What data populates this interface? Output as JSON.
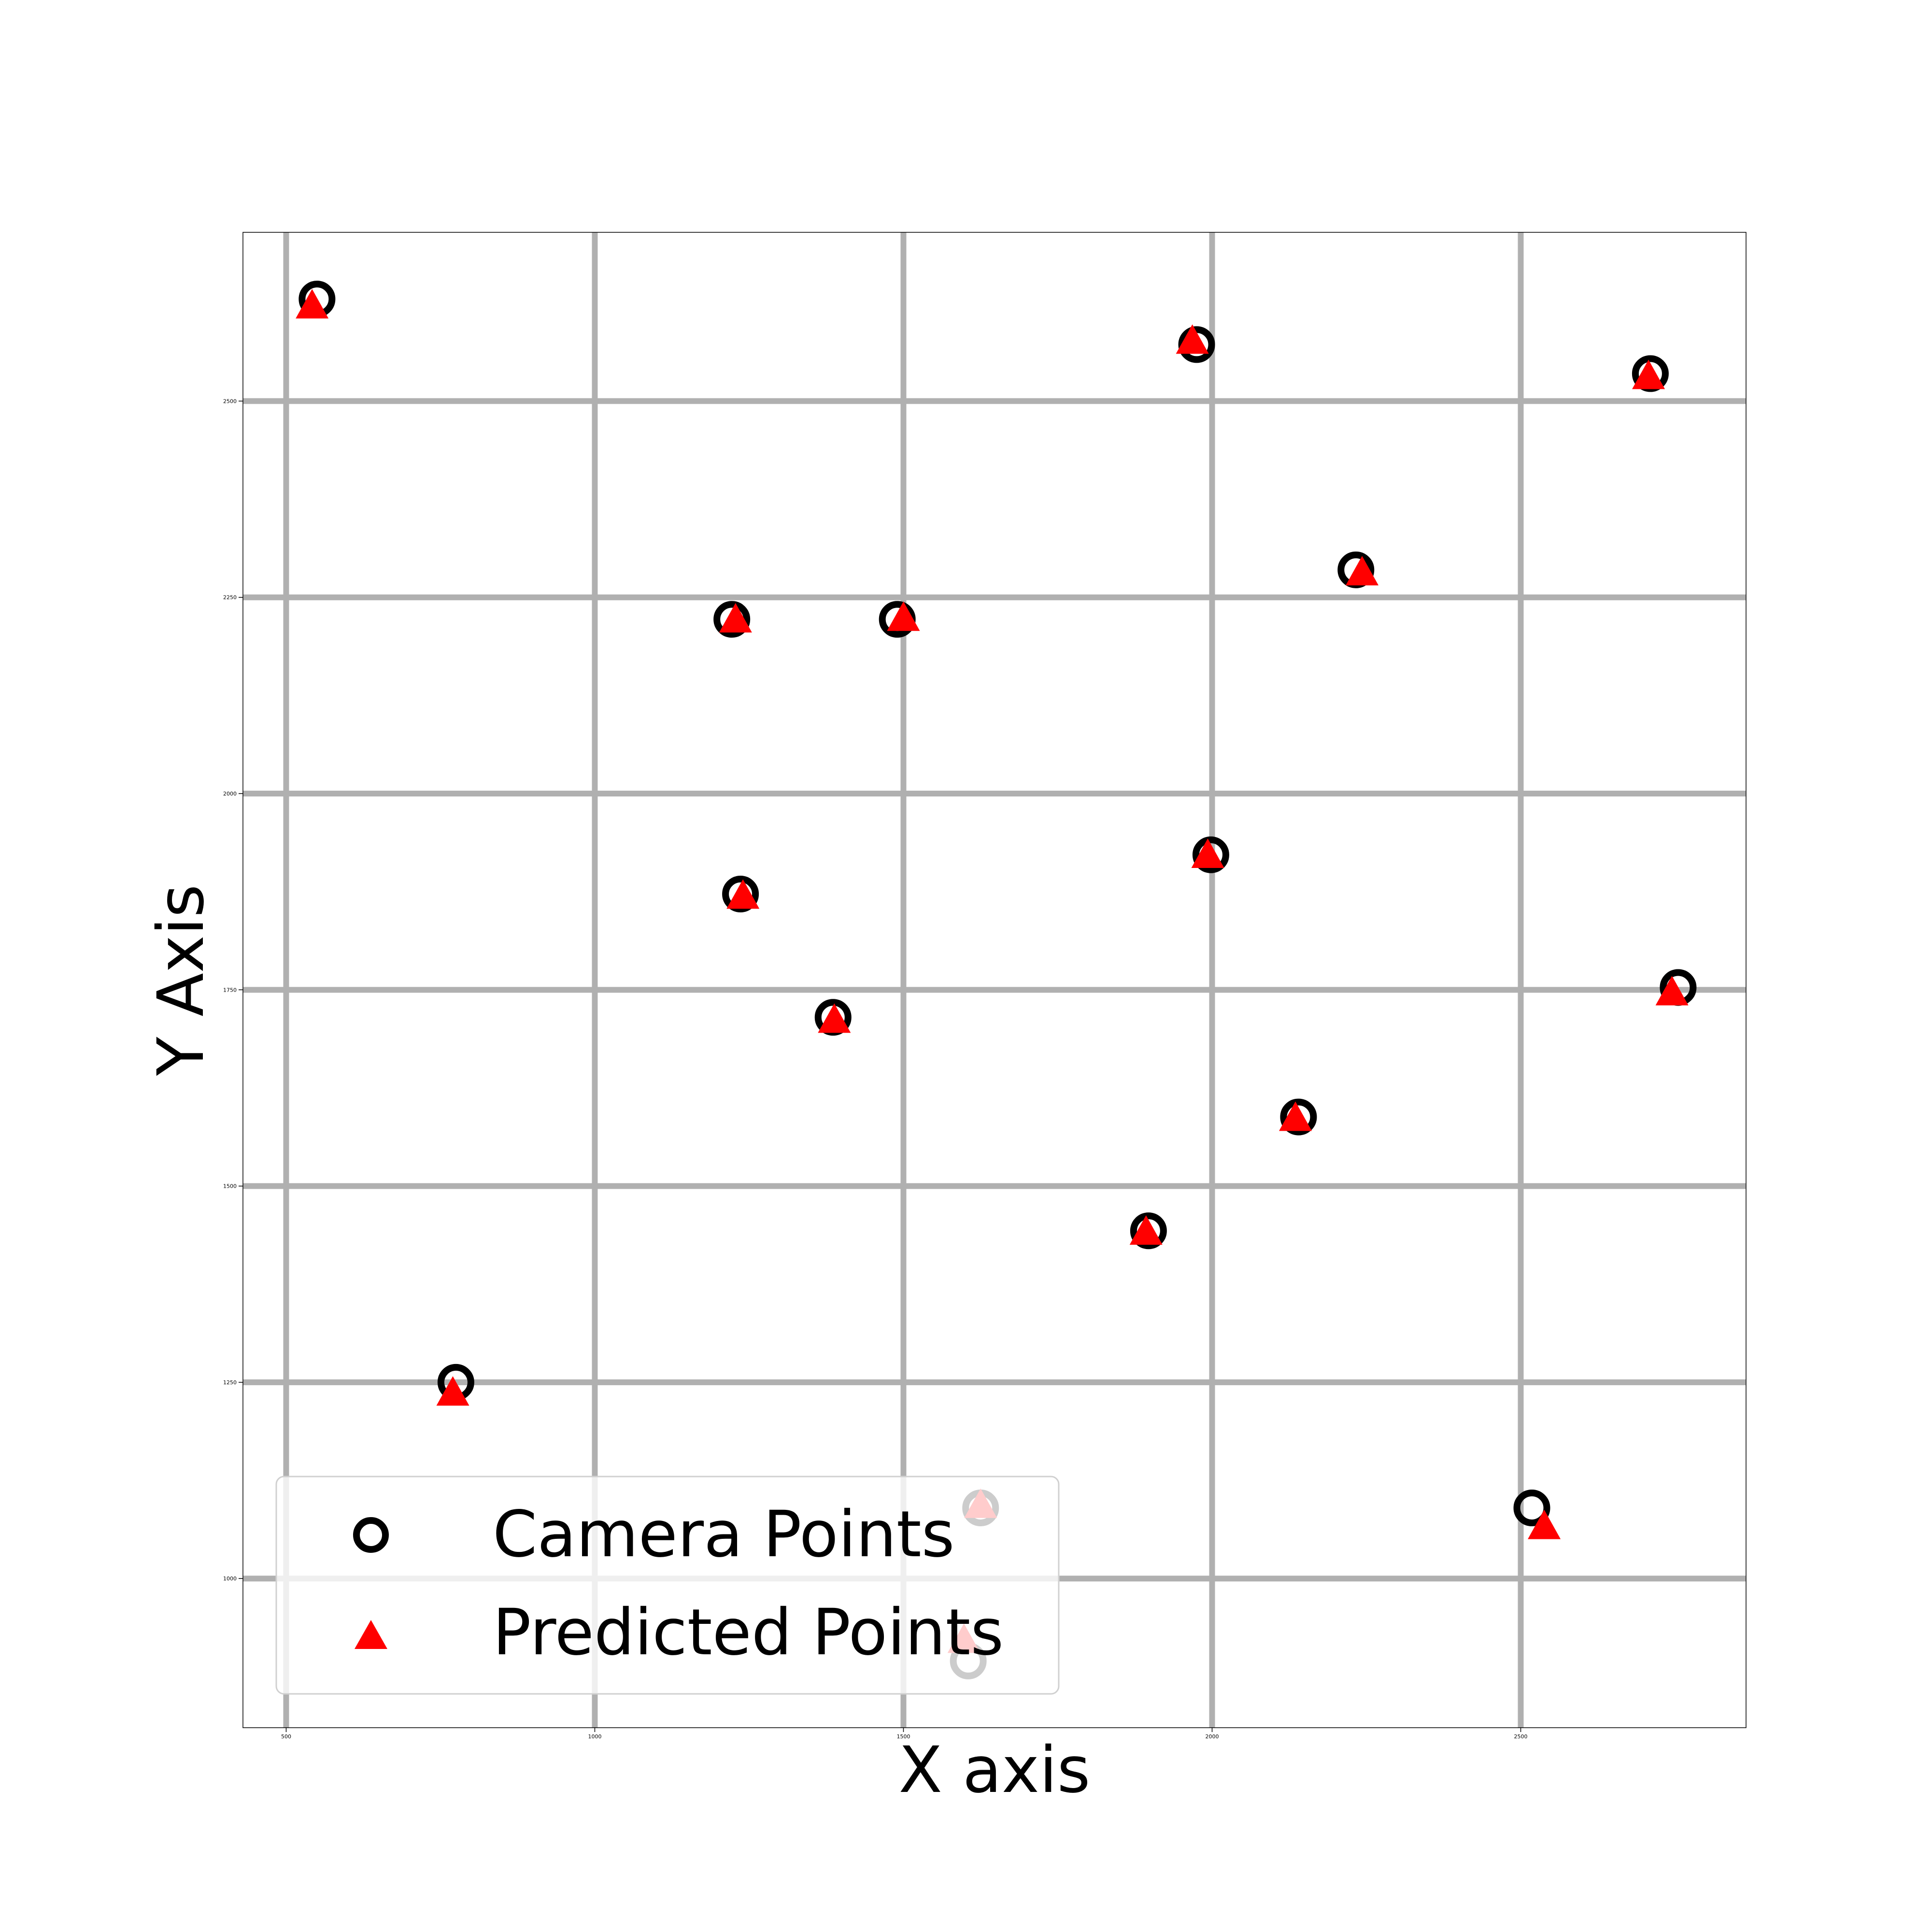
{
  "chart_data": {
    "type": "scatter",
    "xlabel": "X axis",
    "ylabel": "Y Axis",
    "title": "",
    "xlim": [
      430,
      2865
    ],
    "ylim": [
      810,
      2715
    ],
    "x_ticks": [
      500,
      1000,
      1500,
      2000,
      2500
    ],
    "y_ticks": [
      1000,
      1250,
      1500,
      1750,
      2000,
      2250,
      2500
    ],
    "x_tick_labels": [
      "500",
      "1000",
      "1500",
      "2000",
      "2500"
    ],
    "y_tick_labels": [
      "1000",
      "1250",
      "1500",
      "1750",
      "2000",
      "2250",
      "2500"
    ],
    "grid": true,
    "legend_position": "lower-left",
    "series": [
      {
        "name": "Camera Points",
        "marker": "circle-open",
        "color": "#000000",
        "points": [
          {
            "x": 550,
            "y": 2630
          },
          {
            "x": 775,
            "y": 1250
          },
          {
            "x": 1222,
            "y": 2222
          },
          {
            "x": 1236,
            "y": 1872
          },
          {
            "x": 1386,
            "y": 1715
          },
          {
            "x": 1490,
            "y": 2222
          },
          {
            "x": 1605,
            "y": 895
          },
          {
            "x": 1625,
            "y": 1090
          },
          {
            "x": 1897,
            "y": 1443
          },
          {
            "x": 1975,
            "y": 2572
          },
          {
            "x": 1998,
            "y": 1922
          },
          {
            "x": 2140,
            "y": 1588
          },
          {
            "x": 2233,
            "y": 2285
          },
          {
            "x": 2518,
            "y": 1090
          },
          {
            "x": 2710,
            "y": 2535
          },
          {
            "x": 2755,
            "y": 1753
          }
        ]
      },
      {
        "name": "Predicted Points",
        "marker": "triangle",
        "color": "#ff0000",
        "points": [
          {
            "x": 542,
            "y": 2620
          },
          {
            "x": 770,
            "y": 1235
          },
          {
            "x": 1228,
            "y": 2220
          },
          {
            "x": 1240,
            "y": 1868
          },
          {
            "x": 1388,
            "y": 1710
          },
          {
            "x": 1500,
            "y": 2222
          },
          {
            "x": 1598,
            "y": 920
          },
          {
            "x": 1625,
            "y": 1092
          },
          {
            "x": 1893,
            "y": 1440
          },
          {
            "x": 1968,
            "y": 2575
          },
          {
            "x": 1993,
            "y": 1920
          },
          {
            "x": 2135,
            "y": 1585
          },
          {
            "x": 2243,
            "y": 2280
          },
          {
            "x": 2538,
            "y": 1065
          },
          {
            "x": 2707,
            "y": 2530
          },
          {
            "x": 2745,
            "y": 1745
          }
        ]
      }
    ],
    "legend": {
      "entries": [
        {
          "label": "Camera Points",
          "marker": "circle-open",
          "color": "#000000"
        },
        {
          "label": "Predicted Points",
          "marker": "triangle",
          "color": "#ff0000"
        }
      ]
    },
    "colors": {
      "grid": "#b0b0b0",
      "frame": "#000000",
      "background": "#ffffff"
    }
  }
}
